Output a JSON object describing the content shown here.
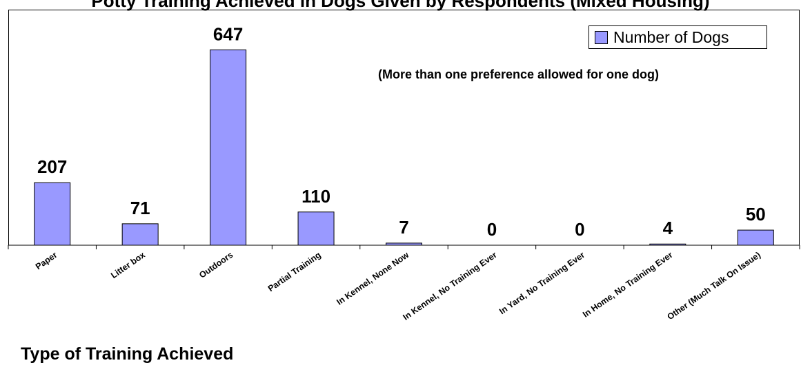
{
  "chart_data": {
    "type": "bar",
    "title": "Potty Training Achieved in Dogs Given by Respondents (Mixed Housing)",
    "note": "(More than one preference allowed for one dog)",
    "xlabel": "Type of Training Achieved",
    "ylabel": "",
    "categories": [
      "Paper",
      "Litter box",
      "Outdoors",
      "Partial Training",
      "In Kennel, None Now",
      "In Kennel, No Training Ever",
      "In Yard, No Training Ever",
      "In Home, No Training Ever",
      "Other (Much Talk On Issue)"
    ],
    "series": [
      {
        "name": "Number of Dogs",
        "values": [
          207,
          71,
          647,
          110,
          7,
          0,
          0,
          4,
          50
        ]
      }
    ],
    "ylim": [
      0,
      780
    ],
    "grid": false,
    "legend": "top-right",
    "colors": {
      "bar": "#9999ff",
      "border": "#000000"
    }
  }
}
